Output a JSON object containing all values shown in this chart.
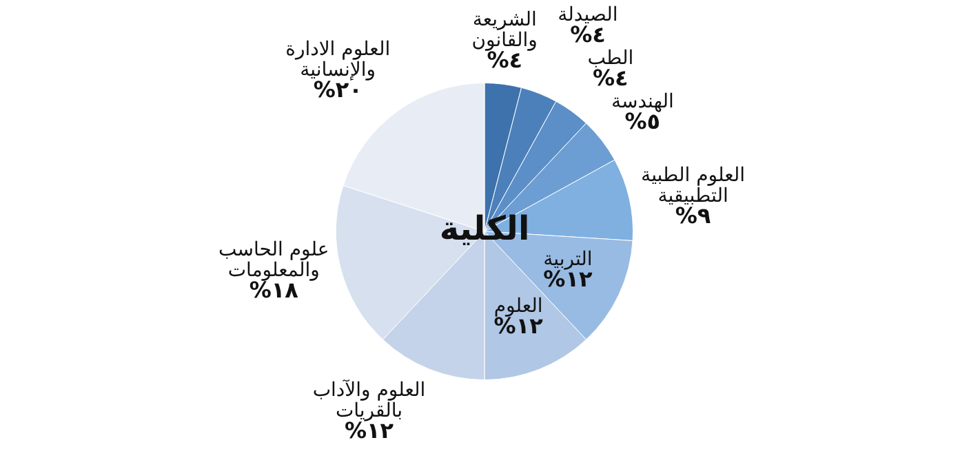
{
  "chart_data": {
    "type": "pie",
    "title": "الكلية",
    "categories": [
      "الشريعة والقانون",
      "الصيدلة",
      "الطب",
      "الهندسة",
      "العلوم الطبية التطبيقية",
      "التربية",
      "العلوم",
      "العلوم والآداب بالقريات",
      "علوم الحاسب والمعلومات",
      "العلوم الادارة والإنسانية"
    ],
    "values": [
      4,
      4,
      4,
      5,
      9,
      12,
      12,
      12,
      18,
      20
    ],
    "value_labels": [
      "٤%",
      "٤%",
      "٤%",
      "٥%",
      "٩%",
      "١٢%",
      "١٢%",
      "١٢%",
      "١٨%",
      "٢٠%"
    ],
    "colors": [
      "#3d72ad",
      "#4c80bb",
      "#5c8fc7",
      "#6c9ed3",
      "#7fb0e0",
      "#98bbe3",
      "#b0c7e5",
      "#c4d3e9",
      "#d6e0ee",
      "#e8edf5"
    ],
    "legend": false
  }
}
